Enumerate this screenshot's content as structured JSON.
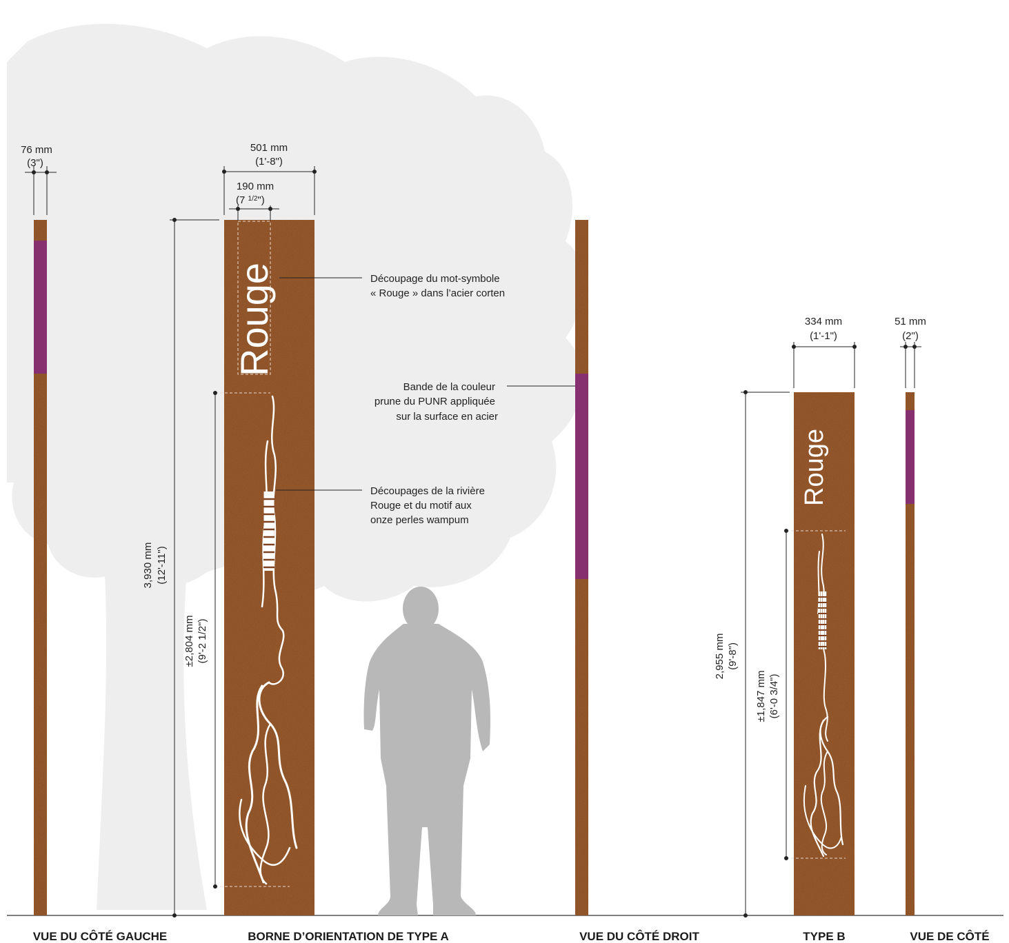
{
  "colors": {
    "corten": "#8a4a22",
    "corten_dark": "#6a3515",
    "plum": "#86306f",
    "tree": "#eeeeee",
    "person": "#b8b8b8",
    "line": "#222222"
  },
  "captions": {
    "left_side": "VUE DU CÔTÉ GAUCHE",
    "type_a": "BORNE D’ORIENTATION DE TYPE A",
    "right_side": "VUE DU CÔTÉ DROIT",
    "type_b": "TYPE B",
    "side_view": "VUE DE CÔTÉ"
  },
  "wordmark": "Rouge",
  "dimensions": {
    "left_depth": {
      "mm": "76 mm",
      "imperial": "(3\")"
    },
    "a_width": {
      "mm": "501 mm",
      "imperial": "(1'-8\")"
    },
    "a_word_width": {
      "mm": "190 mm",
      "imperial_main": "(7 ",
      "imperial_frac": "1/2",
      "imperial_close": "\")"
    },
    "a_height": {
      "mm": "3,930 mm",
      "imperial": "(12'-11\")"
    },
    "a_river": {
      "mm": "±2,804 mm",
      "imperial": "(9'-2 1/2\")"
    },
    "b_width": {
      "mm": "334 mm",
      "imperial": "(1'-1\")"
    },
    "b_depth": {
      "mm": "51 mm",
      "imperial": "(2\")"
    },
    "b_height": {
      "mm": "2,955 mm",
      "imperial": "(9'-8\")"
    },
    "b_river": {
      "mm": "±1,847 mm",
      "imperial": "(6'-0 3/4\")"
    }
  },
  "notes": {
    "wordmark_cut": [
      "Découpage du mot-symbole",
      "« Rouge » dans l’acier corten"
    ],
    "plum_band": [
      "Bande de la couleur",
      "prune du PUNR appliquée",
      "sur la surface en acier"
    ],
    "river_cut": [
      "Découpages de la rivière",
      "Rouge et du motif aux",
      "onze perles wampum"
    ]
  }
}
